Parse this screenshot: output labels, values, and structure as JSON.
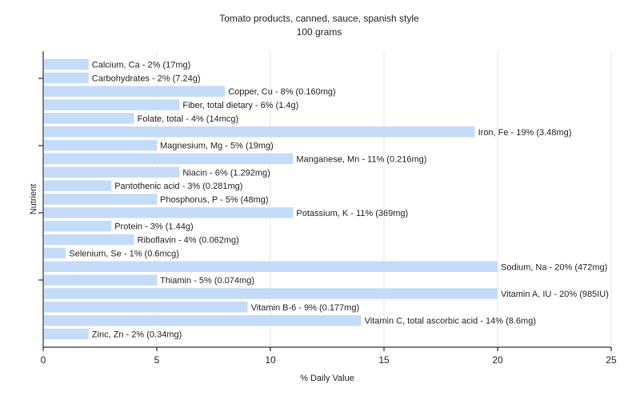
{
  "chart_data": {
    "type": "bar",
    "orientation": "horizontal",
    "title": "Tomato products, canned, sauce, spanish style",
    "subtitle": "100 grams",
    "xlabel": "% Daily Value",
    "ylabel": "Nutrient",
    "xlim": [
      0,
      25
    ],
    "xticks": [
      0,
      5,
      10,
      15,
      20,
      25
    ],
    "grid": true,
    "bar_color": "#c5dcf8",
    "categories": [
      "Calcium, Ca",
      "Carbohydrates",
      "Copper, Cu",
      "Fiber, total dietary",
      "Folate, total",
      "Iron, Fe",
      "Magnesium, Mg",
      "Manganese, Mn",
      "Niacin",
      "Pantothenic acid",
      "Phosphorus, P",
      "Potassium, K",
      "Protein",
      "Riboflavin",
      "Selenium, Se",
      "Sodium, Na",
      "Thiamin",
      "Vitamin A, IU",
      "Vitamin B-6",
      "Vitamin C, total ascorbic acid",
      "Zinc, Zn"
    ],
    "values": [
      2,
      2,
      8,
      6,
      4,
      19,
      5,
      11,
      6,
      3,
      5,
      11,
      3,
      4,
      1,
      20,
      5,
      20,
      9,
      14,
      2
    ],
    "labels": [
      "Calcium, Ca - 2% (17mg)",
      "Carbohydrates - 2% (7.24g)",
      "Copper, Cu - 8% (0.160mg)",
      "Fiber, total dietary - 6% (1.4g)",
      "Folate, total - 4% (14mcg)",
      "Iron, Fe - 19% (3.48mg)",
      "Magnesium, Mg - 5% (19mg)",
      "Manganese, Mn - 11% (0.216mg)",
      "Niacin - 6% (1.292mg)",
      "Pantothenic acid - 3% (0.281mg)",
      "Phosphorus, P - 5% (48mg)",
      "Potassium, K - 11% (369mg)",
      "Protein - 3% (1.44g)",
      "Riboflavin - 4% (0.062mg)",
      "Selenium, Se - 1% (0.6mcg)",
      "Sodium, Na - 20% (472mg)",
      "Thiamin - 5% (0.074mg)",
      "Vitamin A, IU - 20% (985IU)",
      "Vitamin B-6 - 9% (0.177mg)",
      "Vitamin C, total ascorbic acid - 14% (8.6mg)",
      "Zinc, Zn - 2% (0.34mg)"
    ]
  }
}
